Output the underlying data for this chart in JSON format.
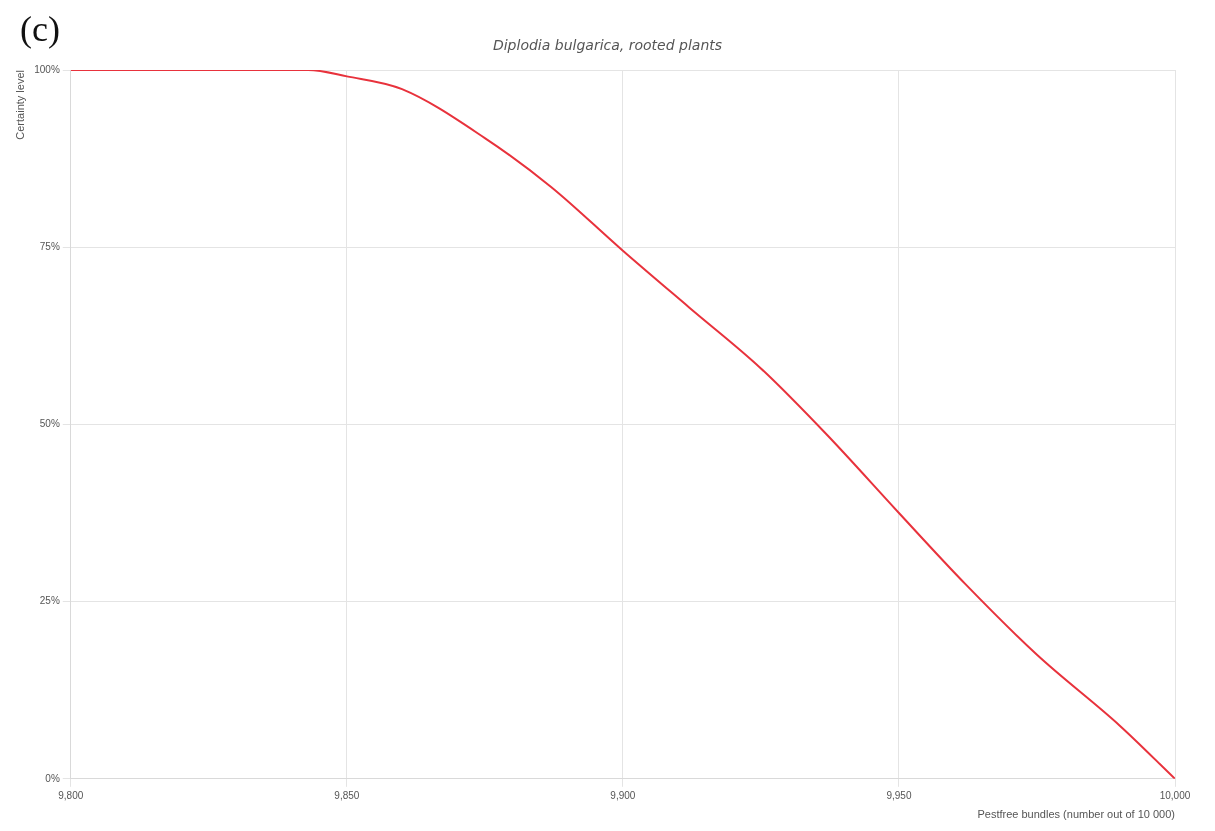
{
  "chart_data": {
    "type": "line",
    "title": "Diplodia bulgarica, rooted plants",
    "xlabel": "Pestfree bundles (number out of 10 000)",
    "ylabel": "Certainty level",
    "annotations": [
      "(c)"
    ],
    "series": [
      {
        "color": "#e8323c",
        "x": [
          9800,
          9820,
          9843,
          9850,
          9860,
          9875,
          9887,
          9900,
          9912,
          9925,
          9937,
          9950,
          9962,
          9975,
          9990,
          10000
        ],
        "values": [
          100,
          100,
          100,
          99.1,
          97.3,
          90.4,
          83.5,
          74.5,
          66.5,
          57.9,
          48.5,
          37.5,
          27.5,
          17.5,
          7.5,
          0
        ]
      }
    ],
    "xlim": [
      9800,
      10000
    ],
    "xticks": [
      {
        "value": 9800,
        "label": "9,800"
      },
      {
        "value": 9850,
        "label": "9,850"
      },
      {
        "value": 9900,
        "label": "9,900"
      },
      {
        "value": 9950,
        "label": "9,950"
      },
      {
        "value": 10000,
        "label": "10,000"
      }
    ],
    "ylim": [
      0,
      100
    ],
    "yticks": [
      {
        "value": 0,
        "label": "0%"
      },
      {
        "value": 25,
        "label": "25%"
      },
      {
        "value": 50,
        "label": "50%"
      },
      {
        "value": 75,
        "label": "75%"
      },
      {
        "value": 100,
        "label": "100%"
      }
    ],
    "grid": true,
    "legend": false,
    "marker": "none",
    "line_style": "solid"
  }
}
